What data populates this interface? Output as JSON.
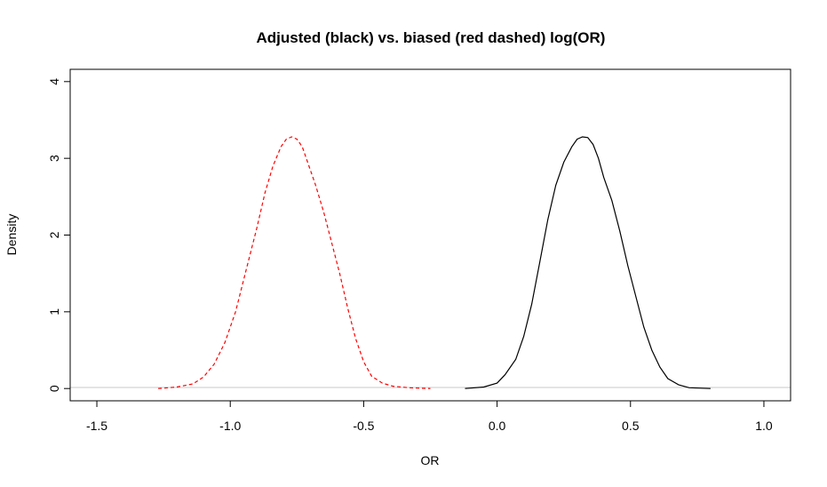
{
  "chart_data": {
    "type": "line",
    "title": "Adjusted (black) vs. biased (red dashed) log(OR)",
    "xlabel": "OR",
    "ylabel": "Density",
    "xlim": [
      -1.6,
      1.1
    ],
    "ylim": [
      -0.16,
      4.16
    ],
    "x_ticks": [
      -1.5,
      -1.0,
      -0.5,
      0.0,
      0.5,
      1.0
    ],
    "x_tick_labels": [
      "-1.5",
      "-1.0",
      "-0.5",
      "0.0",
      "0.5",
      "1.0"
    ],
    "y_ticks": [
      0,
      1,
      2,
      3,
      4
    ],
    "y_tick_labels": [
      "0",
      "1",
      "2",
      "3",
      "4"
    ],
    "grid": false,
    "legend": "none",
    "zero_line_color": "#c8c8c8",
    "series": [
      {
        "color": "#000000",
        "linestyle": "solid",
        "x": [
          -0.12,
          -0.05,
          0.0,
          0.03,
          0.07,
          0.1,
          0.13,
          0.16,
          0.19,
          0.22,
          0.25,
          0.28,
          0.3,
          0.32,
          0.34,
          0.36,
          0.38,
          0.4,
          0.43,
          0.46,
          0.49,
          0.52,
          0.55,
          0.58,
          0.61,
          0.64,
          0.68,
          0.72,
          0.8
        ],
        "y": [
          0.0,
          0.02,
          0.07,
          0.18,
          0.38,
          0.68,
          1.1,
          1.65,
          2.2,
          2.65,
          2.95,
          3.15,
          3.25,
          3.28,
          3.27,
          3.18,
          3.0,
          2.75,
          2.45,
          2.05,
          1.6,
          1.2,
          0.8,
          0.5,
          0.28,
          0.13,
          0.05,
          0.01,
          0.0
        ]
      },
      {
        "color": "#ff0000",
        "linestyle": "dashed",
        "x": [
          -1.27,
          -1.2,
          -1.14,
          -1.1,
          -1.06,
          -1.02,
          -0.98,
          -0.94,
          -0.9,
          -0.87,
          -0.84,
          -0.81,
          -0.79,
          -0.77,
          -0.75,
          -0.73,
          -0.71,
          -0.68,
          -0.65,
          -0.62,
          -0.59,
          -0.56,
          -0.53,
          -0.5,
          -0.47,
          -0.43,
          -0.39,
          -0.33,
          -0.25
        ],
        "y": [
          0.0,
          0.02,
          0.06,
          0.15,
          0.32,
          0.6,
          1.0,
          1.55,
          2.1,
          2.55,
          2.9,
          3.15,
          3.25,
          3.28,
          3.25,
          3.15,
          2.95,
          2.65,
          2.3,
          1.9,
          1.5,
          1.05,
          0.65,
          0.35,
          0.16,
          0.07,
          0.03,
          0.01,
          0.0
        ]
      }
    ]
  }
}
